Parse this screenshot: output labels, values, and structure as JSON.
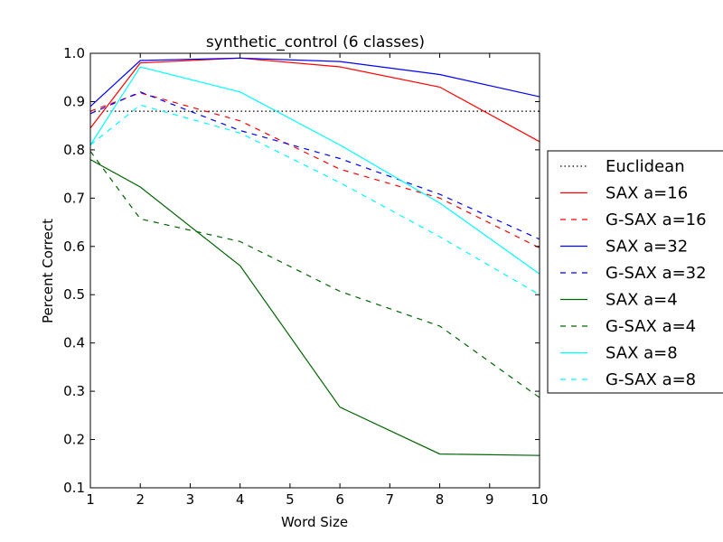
{
  "chart_data": {
    "type": "line",
    "title": "synthetic_control (6 classes)",
    "xlabel": "Word Size",
    "ylabel": "Percent Correct",
    "xlim": [
      1,
      10
    ],
    "ylim": [
      0.1,
      1.0
    ],
    "xticks": [
      1,
      2,
      3,
      4,
      5,
      6,
      7,
      8,
      9,
      10
    ],
    "xtick_labels": [
      "1",
      "2",
      "3",
      "4",
      "5",
      "6",
      "7",
      "8",
      "9",
      "10"
    ],
    "yticks": [
      0.1,
      0.2,
      0.3,
      0.4,
      0.5,
      0.6,
      0.7,
      0.8,
      0.9,
      1.0
    ],
    "ytick_labels": [
      "0.1",
      "0.2",
      "0.3",
      "0.4",
      "0.5",
      "0.6",
      "0.7",
      "0.8",
      "0.9",
      "1.0"
    ],
    "grid": false,
    "legend_position": "outside-right",
    "series": [
      {
        "name": "Euclidean",
        "color": "#000000",
        "style": "dotted",
        "x": [
          1,
          10
        ],
        "y": [
          0.88,
          0.88
        ]
      },
      {
        "name": "SAX a=16",
        "color": "#ff0000",
        "style": "solid",
        "x": [
          1,
          2,
          4,
          6,
          8,
          10
        ],
        "y": [
          0.845,
          0.98,
          0.99,
          0.972,
          0.93,
          0.817
        ]
      },
      {
        "name": "G-SAX a=16",
        "color": "#ff0000",
        "style": "dashed",
        "x": [
          1,
          2,
          4,
          6,
          8,
          10
        ],
        "y": [
          0.88,
          0.918,
          0.86,
          0.76,
          0.7,
          0.597
        ]
      },
      {
        "name": "SAX a=32",
        "color": "#0000ff",
        "style": "solid",
        "x": [
          1,
          2,
          4,
          6,
          8,
          10
        ],
        "y": [
          0.89,
          0.985,
          0.99,
          0.983,
          0.956,
          0.91
        ]
      },
      {
        "name": "G-SAX a=32",
        "color": "#0000ff",
        "style": "dashed",
        "x": [
          1,
          2,
          4,
          6,
          8,
          10
        ],
        "y": [
          0.875,
          0.92,
          0.84,
          0.782,
          0.708,
          0.615
        ]
      },
      {
        "name": "SAX a=4",
        "color": "#006400",
        "style": "solid",
        "x": [
          1,
          2,
          4,
          6,
          8,
          10
        ],
        "y": [
          0.78,
          0.723,
          0.56,
          0.267,
          0.17,
          0.167
        ]
      },
      {
        "name": "G-SAX a=4",
        "color": "#006400",
        "style": "dashed",
        "x": [
          1,
          2,
          4,
          6,
          8,
          10
        ],
        "y": [
          0.797,
          0.657,
          0.61,
          0.507,
          0.435,
          0.287
        ]
      },
      {
        "name": "SAX a=8",
        "color": "#00ffff",
        "style": "solid",
        "x": [
          1,
          2,
          4,
          6,
          8,
          10
        ],
        "y": [
          0.81,
          0.972,
          0.92,
          0.81,
          0.69,
          0.543
        ]
      },
      {
        "name": "G-SAX a=8",
        "color": "#00ffff",
        "style": "dashed",
        "x": [
          1,
          2,
          4,
          6,
          8,
          10
        ],
        "y": [
          0.81,
          0.893,
          0.835,
          0.732,
          0.62,
          0.5
        ]
      }
    ]
  }
}
